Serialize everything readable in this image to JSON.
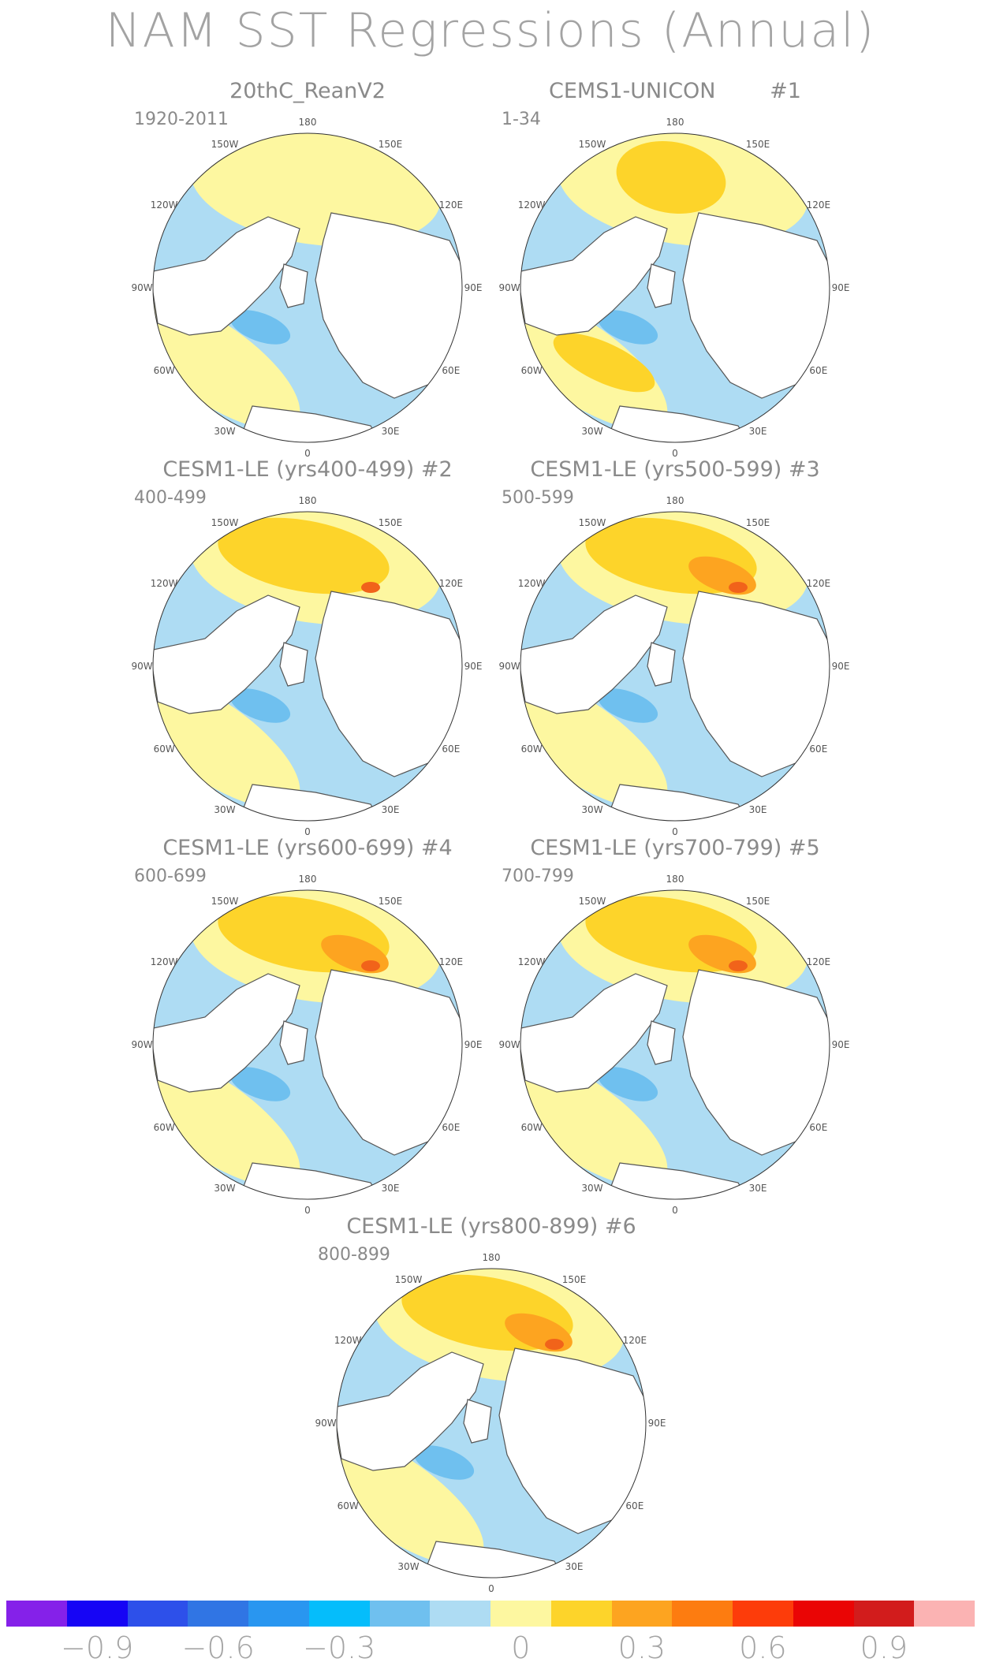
{
  "title": "NAM SST Regressions (Annual)",
  "colors": {
    "map_ocean_base": "#ffffff",
    "land": "#ffffff",
    "coast_line": "#555555",
    "neg_light": "#aedcf3",
    "neg_mid": "#6fc0ef",
    "neg_strong": "#2ea9ea",
    "pos_light": "#fdf7a0",
    "pos_mid": "#fdd42a",
    "pos_strong": "#fda420",
    "pos_max": "#f1631a"
  },
  "longitude_labels": [
    "180",
    "150E",
    "120E",
    "90E",
    "60E",
    "30E",
    "0",
    "30W",
    "60W",
    "90W",
    "120W",
    "150W"
  ],
  "panels": [
    {
      "title": "20thC_ReanV2",
      "number": "",
      "period": "1920-2011"
    },
    {
      "title": "CEMS1-UNICON",
      "number": "#1",
      "period": "1-34"
    },
    {
      "title": "CESM1-LE (yrs400-499)",
      "number": "#2",
      "period": "400-499"
    },
    {
      "title": "CESM1-LE (yrs500-599)",
      "number": "#3",
      "period": "500-599"
    },
    {
      "title": "CESM1-LE (yrs600-699)",
      "number": "#4",
      "period": "600-699"
    },
    {
      "title": "CESM1-LE (yrs700-799)",
      "number": "#5",
      "period": "700-799"
    },
    {
      "title": "CESM1-LE (yrs800-899)",
      "number": "#6",
      "period": "800-899"
    }
  ],
  "colorbar": {
    "colors": [
      "#8521e9",
      "#1605f5",
      "#2d50ea",
      "#3075e4",
      "#2996f0",
      "#05bdfb",
      "#6fc0ef",
      "#aedcf3",
      "#fdf7a0",
      "#fdd42a",
      "#fda420",
      "#fd7c10",
      "#fd3c0a",
      "#ea0505",
      "#d21c1c",
      "#fbb3b3"
    ],
    "labels": [
      "−0.9",
      "−0.6",
      "−0.3",
      "0",
      "0.3",
      "0.6",
      "0.9"
    ],
    "label_boundaries": [
      1,
      3,
      5,
      8,
      10,
      12,
      14
    ]
  }
}
